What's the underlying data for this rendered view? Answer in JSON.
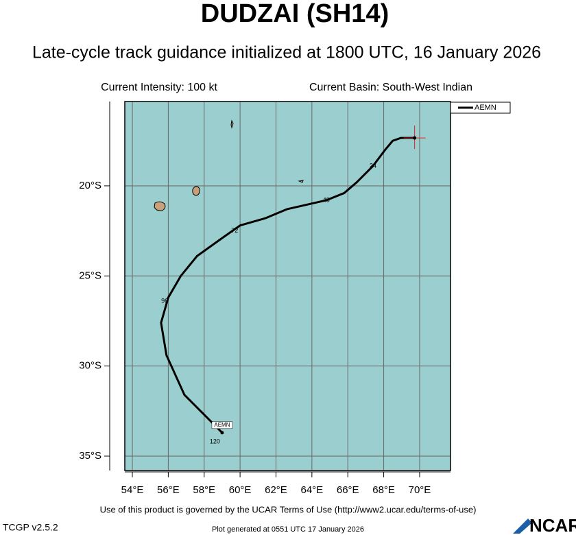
{
  "chart_data": {
    "type": "track",
    "title": "DUDZAI (SH14)",
    "subtitle": "Late-cycle track guidance initialized at 1800 UTC, 16 January 2026",
    "intensity_text": "Current Intensity: 100 kt",
    "basin_text": "Current Basin: South-West Indian",
    "xlim": [
      53.58,
      71.72
    ],
    "ylim": [
      -35.8,
      -15.32
    ],
    "xticks": [
      {
        "value": 54,
        "label": "54°E"
      },
      {
        "value": 56,
        "label": "56°E"
      },
      {
        "value": 58,
        "label": "58°E"
      },
      {
        "value": 60,
        "label": "60°E"
      },
      {
        "value": 62,
        "label": "62°E"
      },
      {
        "value": 64,
        "label": "64°E"
      },
      {
        "value": 66,
        "label": "66°E"
      },
      {
        "value": 68,
        "label": "68°E"
      },
      {
        "value": 70,
        "label": "70°E"
      }
    ],
    "yticks": [
      {
        "value": -20,
        "label": "20°S"
      },
      {
        "value": -25,
        "label": "25°S"
      },
      {
        "value": -30,
        "label": "30°S"
      },
      {
        "value": -35,
        "label": "35°S"
      }
    ],
    "grid": true,
    "legend": "upper right",
    "series": [
      {
        "name": "AEMN",
        "color": "#000000",
        "lon": [
          69.72,
          68.96,
          68.5,
          68.08,
          67.4,
          66.5,
          65.8,
          64.8,
          62.6,
          61.4,
          60.0,
          59.0,
          57.6,
          56.7,
          56.0,
          55.6,
          55.9,
          56.9,
          58.5,
          59.0
        ],
        "lat": [
          -17.34,
          -17.34,
          -17.5,
          -18.0,
          -18.9,
          -19.8,
          -20.4,
          -20.8,
          -21.3,
          -21.8,
          -22.2,
          -22.9,
          -23.9,
          -25.0,
          -26.2,
          -27.6,
          -29.4,
          -31.6,
          -33.2,
          -33.7
        ]
      }
    ],
    "lead_times": [
      {
        "hour": 24,
        "lon": 67.4,
        "lat": -18.9
      },
      {
        "hour": 48,
        "lon": 64.8,
        "lat": -20.8
      },
      {
        "hour": 72,
        "lon": 59.7,
        "lat": -22.5
      },
      {
        "hour": 96,
        "lon": 55.8,
        "lat": -26.4
      },
      {
        "hour": 120,
        "lon": 58.6,
        "lat": -34.2
      }
    ],
    "end_label": "AEMN",
    "terms": "Use of this product is governed by the UCAR Terms of Use (http://www2.ucar.edu/terms-of-use)",
    "version": "TCGP v2.5.2",
    "generated": "Plot generated at 0551 UTC   17 January 2026",
    "logo": "NCAR"
  }
}
